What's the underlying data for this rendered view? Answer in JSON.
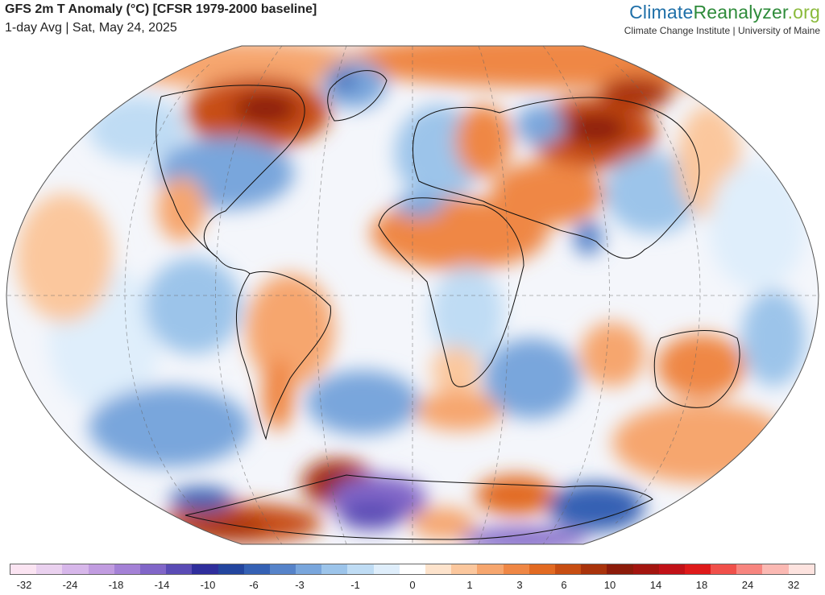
{
  "header": {
    "title": "GFS 2m T Anomaly (°C) [CFSR 1979-2000 baseline]",
    "subtitle": "1-day Avg | Sat, May 24, 2025"
  },
  "brand": {
    "logo_part1": "Climate",
    "logo_part2": "Reanalyzer",
    "logo_part3": ".org",
    "tagline": "Climate Change Institute | University of Maine"
  },
  "map": {
    "projection": "robinson-like world map",
    "variable": "2m temperature anomaly"
  },
  "colorbar": {
    "colors": [
      "#fbe4f2",
      "#ead1ef",
      "#d7b7ea",
      "#c19ce0",
      "#a481d6",
      "#8166c8",
      "#5a4bb5",
      "#2f2e9c",
      "#23459e",
      "#3561b4",
      "#5683c9",
      "#79a6dc",
      "#9cc4ea",
      "#bfdcf4",
      "#dfeefb",
      "#ffffff",
      "#fde3cc",
      "#fbc79d",
      "#f6a66e",
      "#ef8745",
      "#e26a22",
      "#c74d12",
      "#a9330b",
      "#8c1b0a",
      "#a3150f",
      "#c11117",
      "#de1a1a",
      "#f0504a",
      "#f7857f",
      "#fbb9b3",
      "#fde3df"
    ],
    "ticks": [
      "-32",
      "-24",
      "-18",
      "-14",
      "-10",
      "-6",
      "-3",
      "-1",
      "0",
      "1",
      "3",
      "6",
      "10",
      "14",
      "18",
      "24",
      "32"
    ]
  }
}
